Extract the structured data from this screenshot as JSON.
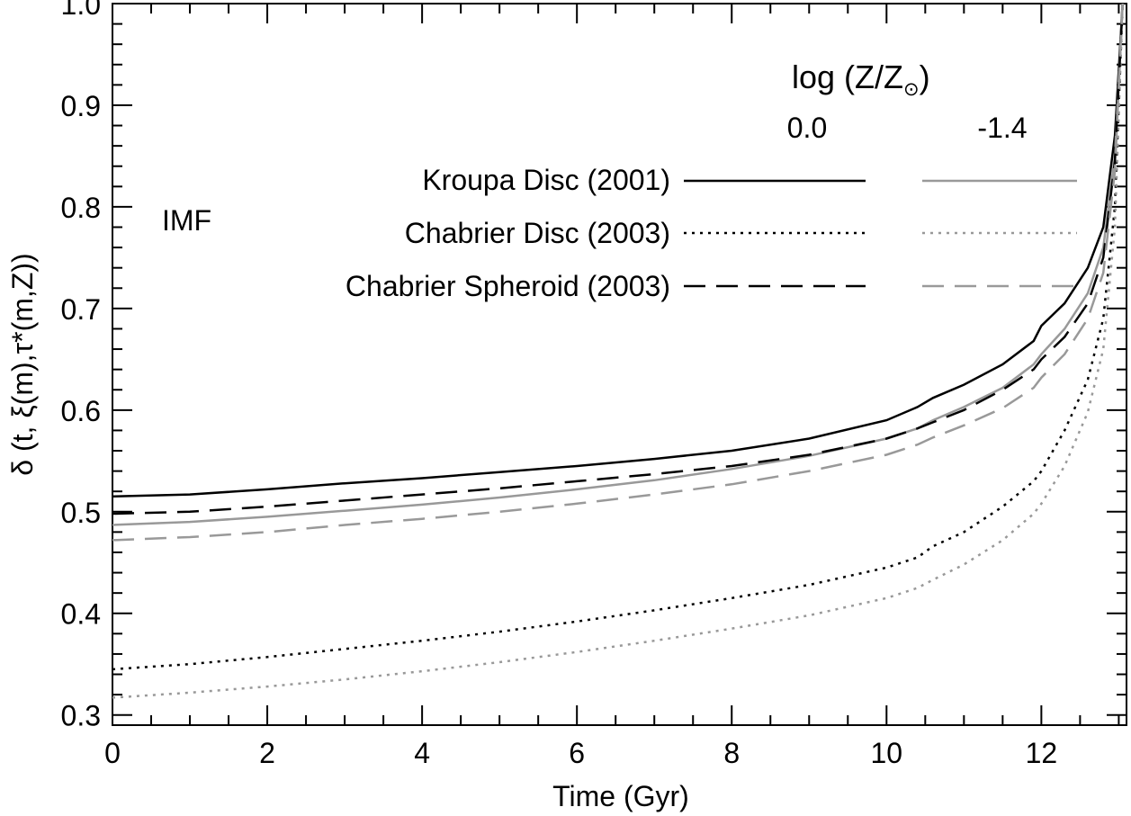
{
  "chart_data": {
    "type": "line",
    "title": "",
    "xlabel": "Time (Gyr)",
    "ylabel": "δ (t, ξ(m),τ*(m,Z))",
    "xlim": [
      0,
      13.1
    ],
    "ylim": [
      0.29,
      1.0
    ],
    "xticks": [
      0,
      2,
      4,
      6,
      8,
      10,
      12
    ],
    "yticks": [
      0.3,
      0.4,
      0.5,
      0.6,
      0.7,
      0.8,
      0.9,
      1.0
    ],
    "x_tick_labels": [
      "0",
      "2",
      "4",
      "6",
      "8",
      "10",
      "12"
    ],
    "y_tick_labels": [
      "0.3",
      "0.4",
      "0.5",
      "0.6",
      "0.7",
      "0.8",
      "0.9",
      "1.0"
    ],
    "legend": {
      "title_main": "log (Z/Z",
      "title_sub": "⊙",
      "title_close": ")",
      "group_label": "IMF",
      "metallicity_columns": [
        "0.0",
        "-1.4"
      ],
      "rows": [
        "Kroupa Disc (2001)",
        "Chabrier Disc (2003)",
        "Chabrier Spheroid (2003)"
      ]
    },
    "x": [
      0,
      1,
      2,
      3,
      4,
      5,
      6,
      7,
      8,
      9,
      10,
      10.4,
      10.6,
      11,
      11.5,
      11.9,
      12.0,
      12.3,
      12.6,
      12.8,
      12.95,
      13.05
    ],
    "series": [
      {
        "name": "Kroupa Disc (2001)",
        "log_Z": "0.0",
        "color": "#000000",
        "style": "solid",
        "values": [
          0.515,
          0.517,
          0.522,
          0.528,
          0.533,
          0.539,
          0.545,
          0.552,
          0.56,
          0.572,
          0.59,
          0.603,
          0.612,
          0.625,
          0.645,
          0.668,
          0.683,
          0.705,
          0.74,
          0.78,
          0.87,
          1.0
        ]
      },
      {
        "name": "Kroupa Disc (2001)",
        "log_Z": "-1.4",
        "color": "#999999",
        "style": "solid",
        "values": [
          0.487,
          0.49,
          0.495,
          0.501,
          0.507,
          0.514,
          0.522,
          0.531,
          0.542,
          0.555,
          0.572,
          0.582,
          0.59,
          0.603,
          0.622,
          0.645,
          0.655,
          0.68,
          0.715,
          0.76,
          0.85,
          1.0
        ]
      },
      {
        "name": "Chabrier Disc (2003)",
        "log_Z": "0.0",
        "color": "#000000",
        "style": "dotted",
        "values": [
          0.345,
          0.35,
          0.357,
          0.365,
          0.373,
          0.382,
          0.392,
          0.403,
          0.415,
          0.428,
          0.445,
          0.455,
          0.466,
          0.48,
          0.505,
          0.53,
          0.54,
          0.58,
          0.63,
          0.69,
          0.8,
          1.0
        ]
      },
      {
        "name": "Chabrier Disc (2003)",
        "log_Z": "-1.4",
        "color": "#999999",
        "style": "dotted",
        "values": [
          0.317,
          0.322,
          0.328,
          0.335,
          0.343,
          0.352,
          0.362,
          0.373,
          0.385,
          0.398,
          0.415,
          0.425,
          0.433,
          0.448,
          0.472,
          0.498,
          0.508,
          0.545,
          0.598,
          0.66,
          0.78,
          1.0
        ]
      },
      {
        "name": "Chabrier Spheroid (2003)",
        "log_Z": "0.0",
        "color": "#000000",
        "style": "dashed",
        "values": [
          0.498,
          0.5,
          0.505,
          0.511,
          0.517,
          0.523,
          0.53,
          0.537,
          0.545,
          0.556,
          0.572,
          0.582,
          0.588,
          0.6,
          0.62,
          0.64,
          0.65,
          0.672,
          0.705,
          0.75,
          0.845,
          1.0
        ]
      },
      {
        "name": "Chabrier Spheroid (2003)",
        "log_Z": "-1.4",
        "color": "#999999",
        "style": "dashed",
        "values": [
          0.472,
          0.475,
          0.48,
          0.487,
          0.493,
          0.5,
          0.508,
          0.517,
          0.527,
          0.54,
          0.556,
          0.566,
          0.573,
          0.585,
          0.602,
          0.622,
          0.632,
          0.655,
          0.69,
          0.735,
          0.835,
          1.0
        ]
      }
    ]
  }
}
